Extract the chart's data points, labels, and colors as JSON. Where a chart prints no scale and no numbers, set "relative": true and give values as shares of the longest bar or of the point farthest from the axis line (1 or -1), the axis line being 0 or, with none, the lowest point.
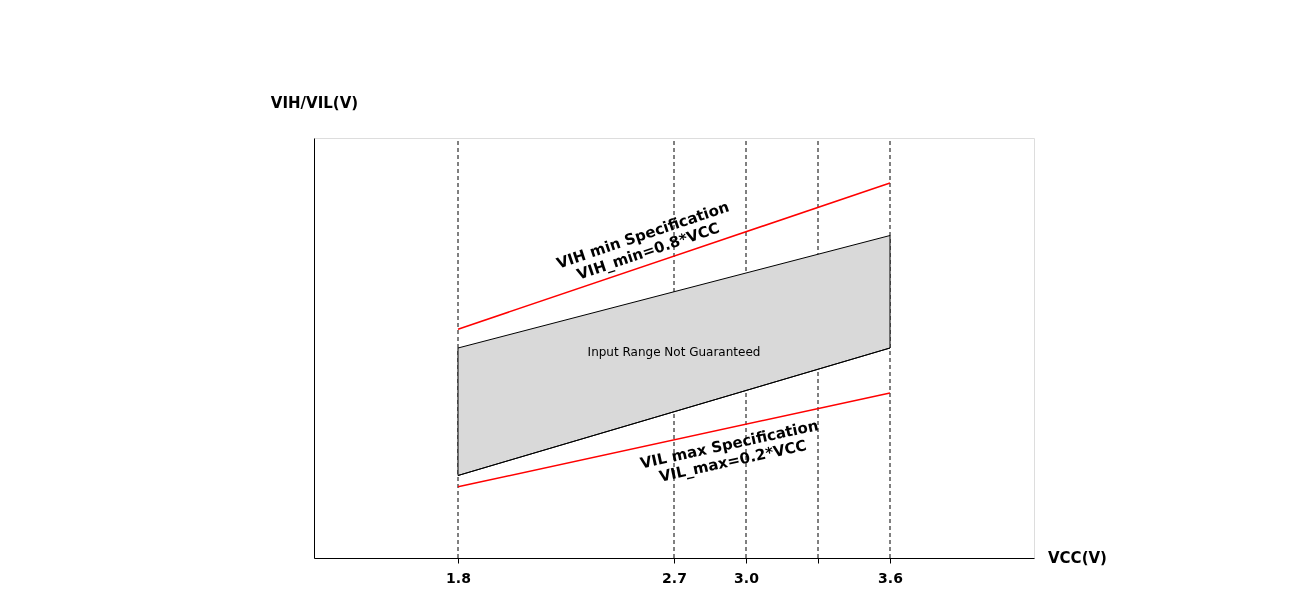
{
  "chart_data": {
    "type": "line",
    "relative": true,
    "xlabel": "VCC(V)",
    "ylabel": "VIH/VIL(V)",
    "xlim": [
      1.2,
      4.2
    ],
    "xticks": [
      1.8,
      2.7,
      "3.0",
      {
        "value": 3.3,
        "label": null
      },
      3.6
    ],
    "x": [
      1.8,
      3.6
    ],
    "series": [
      {
        "name": "VIH min Specification",
        "color": "#ff0000",
        "values": [
          0.61,
          1.0
        ]
      },
      {
        "type": "area",
        "color": "#d9d9d9",
        "values": [
          0.56,
          0.86
        ]
      },
      {
        "color": "#000000",
        "values": [
          0.22,
          0.56
        ]
      },
      {
        "name": "VIL max Specification",
        "color": "#ff0000",
        "values": [
          0.19,
          0.44
        ]
      }
    ],
    "ref_lines": [
      {
        "axis": "x",
        "value": 1.8,
        "color": "#000000",
        "line_style": "dashed"
      },
      {
        "axis": "x",
        "value": 2.7,
        "color": "#000000",
        "line_style": "dashed"
      },
      {
        "axis": "x",
        "value": 3.0,
        "color": "#000000",
        "line_style": "dashed"
      },
      {
        "axis": "x",
        "value": 3.3,
        "color": "#000000",
        "line_style": "dashed"
      },
      {
        "axis": "x",
        "value": 3.6,
        "color": "#000000",
        "line_style": "dashed"
      }
    ],
    "annotations": [
      "VIH_min=0.8*VCC",
      {
        "text": "Input Range Not Guaranteed",
        "x": 2.7,
        "y": 0.55
      },
      "VIL_max=0.2*VCC"
    ],
    "grid": false
  }
}
